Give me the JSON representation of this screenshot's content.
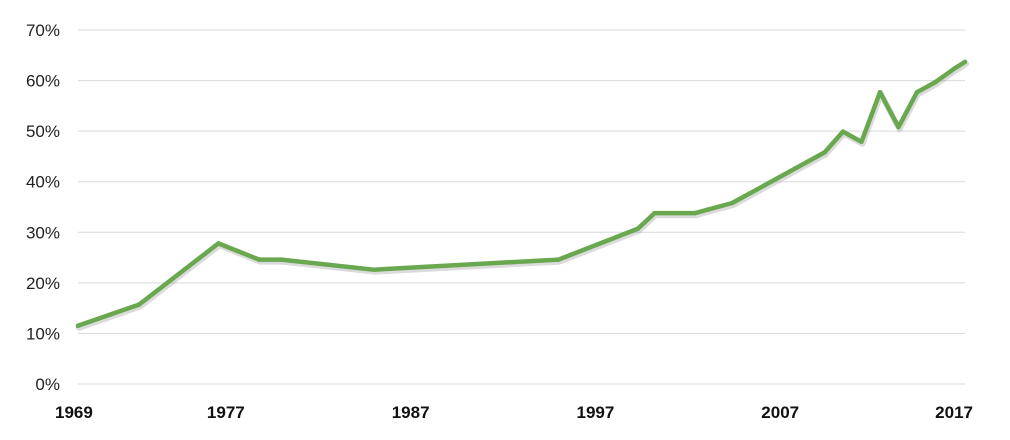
{
  "chart_data": {
    "type": "line",
    "title": "",
    "xlabel": "",
    "ylabel": "",
    "xlim": [
      1969,
      2017
    ],
    "ylim": [
      0,
      70
    ],
    "grid": true,
    "legend": "none",
    "line_color": "#6aa84f",
    "grid_color": "#d9d9d9",
    "y_ticks": [
      {
        "value": 0,
        "label": "0%"
      },
      {
        "value": 10,
        "label": "10%"
      },
      {
        "value": 20,
        "label": "20%"
      },
      {
        "value": 30,
        "label": "30%"
      },
      {
        "value": 40,
        "label": "40%"
      },
      {
        "value": 50,
        "label": "50%"
      },
      {
        "value": 60,
        "label": "60%"
      },
      {
        "value": 70,
        "label": "70%"
      }
    ],
    "x_ticks": [
      {
        "value": 1969,
        "label": "1969"
      },
      {
        "value": 1977,
        "label": "1977"
      },
      {
        "value": 1987,
        "label": "1987"
      },
      {
        "value": 1997,
        "label": "1997"
      },
      {
        "value": 2007,
        "label": "2007"
      },
      {
        "value": 2017,
        "label": "2017"
      }
    ],
    "series": [
      {
        "x": [
          1969,
          1972.3,
          1976.6,
          1978.8,
          1980,
          1985,
          1995,
          1999.3,
          2000.2,
          2002.4,
          2004.4,
          2009.4,
          2010.4,
          2011.4,
          2012.4,
          2013.4,
          2014.4,
          2015.4,
          2016.4,
          2017
        ],
        "y": [
          11.5,
          15.7,
          27.8,
          24.6,
          24.6,
          22.6,
          24.6,
          30.7,
          33.8,
          33.8,
          35.8,
          45.8,
          49.9,
          47.9,
          57.7,
          50.8,
          57.7,
          59.7,
          62.3,
          63.7
        ]
      }
    ]
  }
}
